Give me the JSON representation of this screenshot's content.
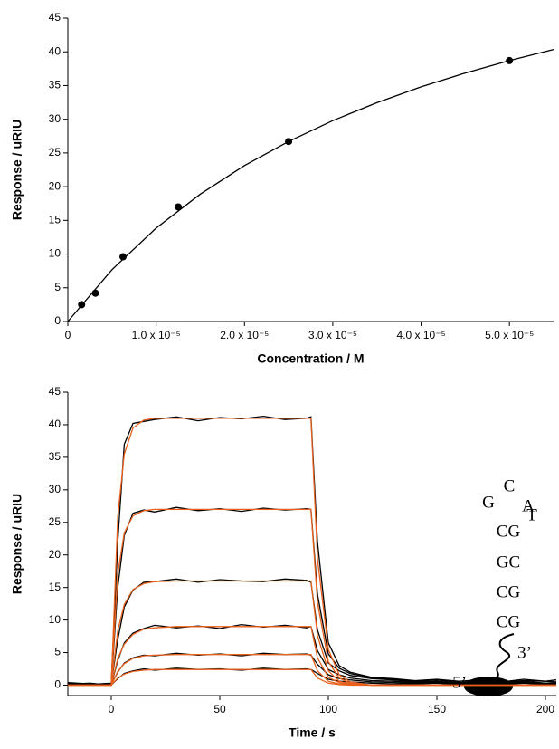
{
  "chart_data": [
    {
      "type": "scatter",
      "y_label": "Response / uRIU",
      "x_label": "Concentration / M",
      "xlim": [
        0,
        5.5e-05
      ],
      "ylim": [
        0,
        45
      ],
      "xticks": [
        0,
        {
          "value": 1e-05,
          "label": "1.0 x 10⁻⁵"
        },
        {
          "value": 2e-05,
          "label": "2.0 x 10⁻⁵"
        },
        {
          "value": 3e-05,
          "label": "3.0 x 10⁻⁵"
        },
        {
          "value": 4e-05,
          "label": "4.0 x 10⁻⁵"
        },
        {
          "value": 5e-05,
          "label": "5.0 x 10⁻⁵"
        }
      ],
      "yticks": [
        0,
        5,
        10,
        15,
        20,
        25,
        30,
        35,
        40,
        45
      ],
      "series": [
        {
          "mode": "markers",
          "color": "#000000",
          "x": [
            1.5625e-06,
            3.125e-06,
            6.25e-06,
            1.25e-05,
            2.5e-05,
            5e-05
          ],
          "values": [
            2.5,
            4.2,
            9.6,
            17,
            26.7,
            38.7
          ]
        },
        {
          "mode": "line",
          "color": "#000000",
          "x": [
            0,
            5e-06,
            1e-05,
            1.5e-05,
            2e-05,
            2.5e-05,
            3e-05,
            3.5e-05,
            4e-05,
            4.5e-05,
            5e-05,
            5.5e-05
          ],
          "values": [
            0,
            7.68,
            13.85,
            18.9,
            23.13,
            26.71,
            29.79,
            32.46,
            34.8,
            36.86,
            38.7,
            40.35
          ]
        }
      ]
    },
    {
      "type": "line",
      "y_label": "Response / uRIU",
      "x_label": "Time / s",
      "xlim": [
        -20,
        205
      ],
      "ylim": [
        -1.6,
        45
      ],
      "xticks": [
        0,
        50,
        100,
        150,
        200
      ],
      "yticks": [
        0,
        5,
        10,
        15,
        20,
        25,
        30,
        35,
        40,
        45
      ],
      "annotations": [
        "G",
        "C",
        "A",
        "CG",
        "T",
        "GC",
        "CG",
        "CG",
        "3’",
        "5’"
      ],
      "x": [
        -20,
        -10,
        0,
        3,
        6,
        10,
        15,
        20,
        30,
        40,
        50,
        60,
        70,
        80,
        90,
        92,
        95,
        100,
        105,
        110,
        120,
        130,
        140,
        150,
        160,
        170,
        180,
        190,
        200,
        205
      ],
      "series": [
        {
          "color": "#000000",
          "values": [
            0.2,
            0.1,
            0.3,
            22,
            37,
            40.2,
            40.5,
            40.8,
            41.2,
            40.6,
            41.1,
            40.9,
            41.3,
            40.8,
            41.0,
            41.2,
            22,
            6.5,
            3,
            2,
            1.2,
            1,
            0.7,
            0.9,
            0.6,
            0.8,
            0.5,
            0.7,
            0.6,
            0.8
          ]
        },
        {
          "color": "#000000",
          "values": [
            0.4,
            0.2,
            0.1,
            15,
            23,
            26.4,
            26.9,
            26.6,
            27.3,
            26.8,
            27.1,
            26.7,
            27.2,
            26.9,
            27.1,
            27.0,
            14,
            4.8,
            2.6,
            1.8,
            1.1,
            0.9,
            0.6,
            0.8,
            0.4,
            0.7,
            0.5,
            0.9,
            0.6,
            0.5
          ]
        },
        {
          "color": "#000000",
          "values": [
            0.3,
            0,
            0.2,
            7,
            12,
            14.6,
            15.8,
            15.9,
            16.3,
            15.8,
            16.2,
            16.0,
            15.9,
            16.3,
            16.1,
            15.8,
            8.5,
            3.4,
            2.2,
            1.5,
            1.0,
            0.8,
            0.5,
            0.6,
            0.3,
            0.5,
            0.4,
            0.6,
            0.3,
            0.4
          ]
        },
        {
          "color": "#000000",
          "values": [
            0.1,
            0.3,
            0,
            3.8,
            6.5,
            8.0,
            8.7,
            9.2,
            8.8,
            9.1,
            8.7,
            9.3,
            8.9,
            9.2,
            8.8,
            9.0,
            5.3,
            2.4,
            1.6,
            1.1,
            0.7,
            0.6,
            0.4,
            0.5,
            0.2,
            0.4,
            0.3,
            0.5,
            0.2,
            0.3
          ]
        },
        {
          "color": "#000000",
          "values": [
            0.2,
            0.1,
            0.1,
            2,
            3.4,
            4.2,
            4.6,
            4.5,
            4.9,
            4.6,
            4.8,
            4.5,
            4.9,
            4.7,
            4.8,
            4.6,
            3.2,
            1.6,
            1,
            0.8,
            0.5,
            0.4,
            0.3,
            0.4,
            0.2,
            0.3,
            0.2,
            0.4,
            0.1,
            0.2
          ]
        },
        {
          "color": "#000000",
          "values": [
            0,
            0.2,
            0,
            1,
            1.8,
            2.2,
            2.5,
            2.3,
            2.6,
            2.4,
            2.5,
            2.3,
            2.6,
            2.4,
            2.5,
            2.4,
            1.8,
            0.9,
            0.6,
            0.5,
            0.3,
            0.2,
            0.2,
            0.3,
            0.1,
            0.2,
            0.1,
            0.3,
            0.1,
            0.2
          ]
        },
        {
          "color": "#e8601c",
          "values": [
            0,
            0,
            0,
            25.9,
            35.5,
            39.5,
            40.7,
            41,
            41,
            41,
            41,
            41,
            41,
            41,
            41,
            41,
            19.4,
            5.5,
            1.6,
            0.5,
            0,
            0,
            0,
            0,
            0,
            0,
            0,
            0,
            0,
            0
          ]
        },
        {
          "color": "#e8601c",
          "values": [
            0,
            0,
            0,
            17.1,
            23.4,
            26,
            26.8,
            27,
            27,
            27,
            27,
            27,
            27,
            27,
            27,
            27,
            12.7,
            3.6,
            1.1,
            0.3,
            0,
            0,
            0,
            0,
            0,
            0,
            0,
            0,
            0,
            0
          ]
        },
        {
          "color": "#e8601c",
          "values": [
            0,
            0,
            0,
            8.4,
            12.4,
            14.7,
            15.6,
            15.9,
            16,
            16,
            16,
            16,
            16,
            16,
            16,
            16,
            7.6,
            2.2,
            0.6,
            0.2,
            0,
            0,
            0,
            0,
            0,
            0,
            0,
            0,
            0,
            0
          ]
        },
        {
          "color": "#e8601c",
          "values": [
            0,
            0,
            0,
            4.1,
            6.3,
            7.8,
            8.6,
            8.8,
            9,
            9,
            9,
            9,
            9,
            9,
            9,
            9,
            4.2,
            1.2,
            0.4,
            0.1,
            0,
            0,
            0,
            0,
            0,
            0,
            0,
            0,
            0,
            0
          ]
        },
        {
          "color": "#e8601c",
          "values": [
            0,
            0,
            0,
            2.1,
            3.3,
            4.1,
            4.5,
            4.6,
            4.7,
            4.7,
            4.7,
            4.7,
            4.7,
            4.7,
            4.7,
            4.7,
            2.2,
            0.6,
            0.2,
            0.1,
            0,
            0,
            0,
            0,
            0,
            0,
            0,
            0,
            0,
            0
          ]
        },
        {
          "color": "#e8601c",
          "values": [
            0,
            0,
            0,
            1.1,
            1.7,
            2.1,
            2.3,
            2.4,
            2.4,
            2.4,
            2.4,
            2.4,
            2.4,
            2.4,
            2.4,
            2.4,
            1.1,
            0.3,
            0.1,
            0,
            0,
            0,
            0,
            0,
            0,
            0,
            0,
            0,
            0,
            0
          ]
        }
      ]
    }
  ]
}
